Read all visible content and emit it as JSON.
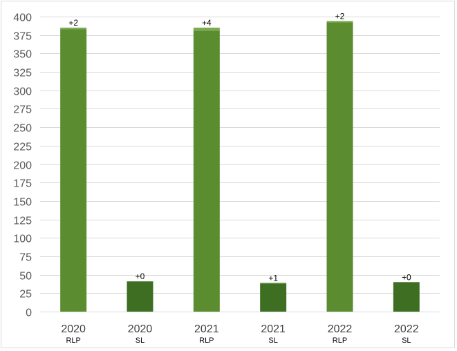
{
  "chart_data": {
    "type": "bar",
    "stacked": true,
    "categories": [
      {
        "year": "2020",
        "sub": "RLP"
      },
      {
        "year": "2020",
        "sub": "SL"
      },
      {
        "year": "2021",
        "sub": "RLP"
      },
      {
        "year": "2021",
        "sub": "SL"
      },
      {
        "year": "2022",
        "sub": "RLP"
      },
      {
        "year": "2022",
        "sub": "SL"
      }
    ],
    "series": [
      {
        "values": [
          383,
          41,
          381,
          38,
          392,
          40
        ]
      },
      {
        "values": [
          2,
          0,
          4,
          1,
          2,
          0
        ]
      }
    ],
    "data_labels": [
      "+2",
      "+0",
      "+4",
      "+1",
      "+2",
      "+0"
    ],
    "ylim": [
      0,
      400
    ],
    "yticks": [
      0,
      25,
      50,
      75,
      100,
      125,
      150,
      175,
      200,
      225,
      250,
      275,
      300,
      325,
      350,
      375,
      400
    ],
    "grid": true,
    "legend": "none",
    "title": "",
    "xlabel": "",
    "ylabel": "",
    "colors": {
      "RLP_base": "#5b8c2f",
      "SL_base": "#3e6e22",
      "increment": "#7aab4e",
      "increment_small": "#5f9a37"
    }
  }
}
